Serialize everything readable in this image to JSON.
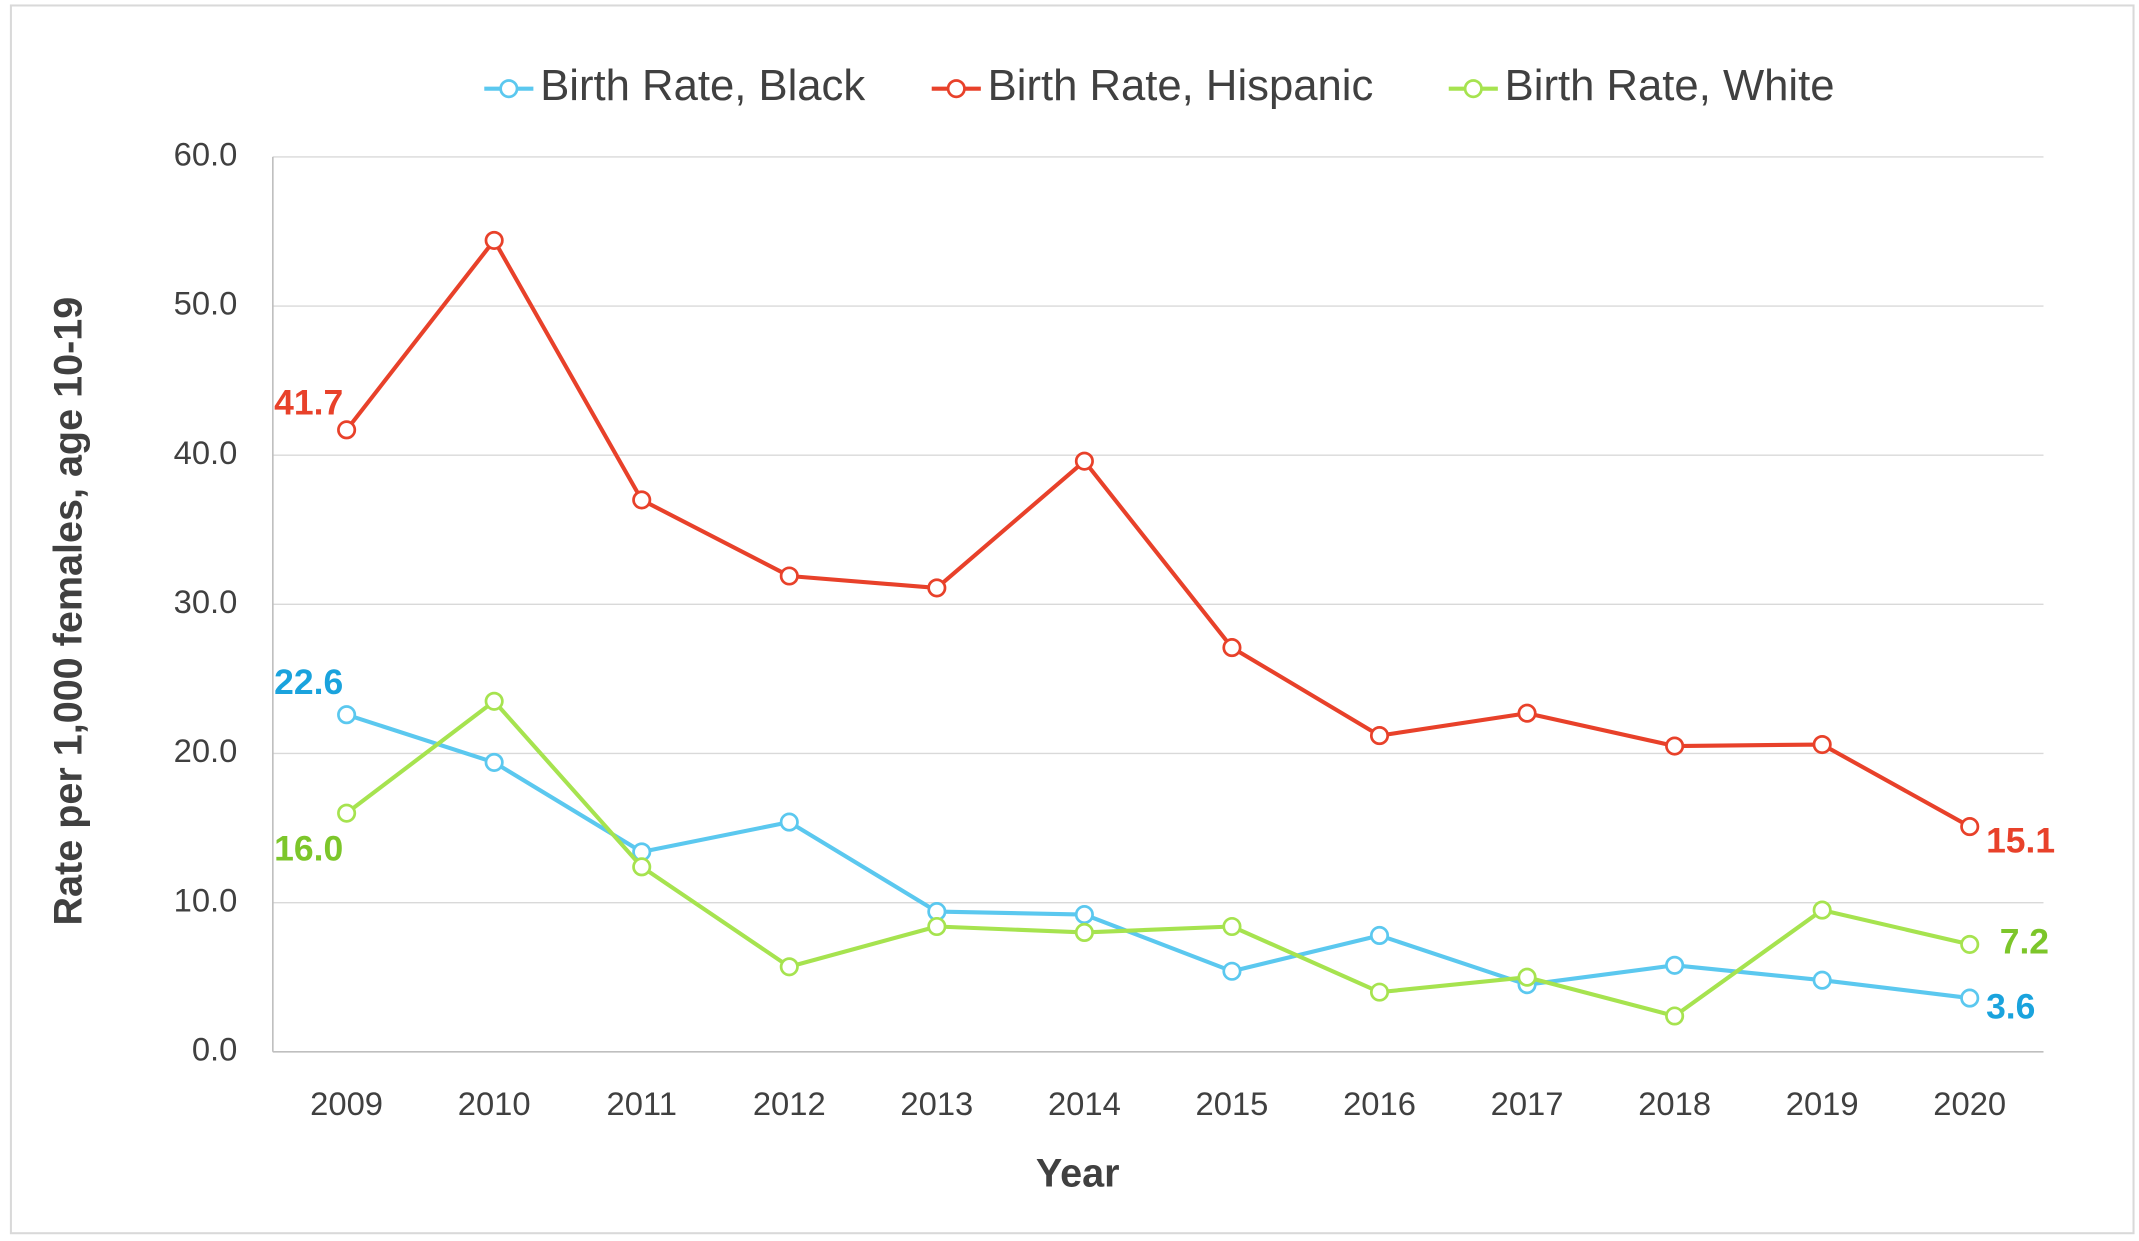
{
  "chart_data": {
    "type": "line",
    "x_label": "Year",
    "y_label": "Rate per 1,000 females, age 10-19",
    "categories": [
      "2009",
      "2010",
      "2011",
      "2012",
      "2013",
      "2014",
      "2015",
      "2016",
      "2017",
      "2018",
      "2019",
      "2020"
    ],
    "series": [
      {
        "name": "Birth Rate, Black",
        "color": "#5bc8ef",
        "values": [
          22.6,
          19.4,
          13.4,
          15.4,
          9.4,
          9.2,
          5.4,
          7.8,
          4.5,
          5.8,
          4.8,
          3.6
        ],
        "value_labels": [
          "22.6",
          null,
          null,
          null,
          null,
          null,
          null,
          null,
          null,
          null,
          null,
          "3.6"
        ],
        "label_color": "#1aa3dd"
      },
      {
        "name": "Birth Rate, Hispanic",
        "color": "#e8412a",
        "values": [
          41.7,
          54.4,
          37.0,
          31.9,
          31.1,
          39.6,
          27.1,
          21.2,
          22.7,
          20.5,
          20.6,
          15.1
        ],
        "value_labels": [
          "41.7",
          null,
          null,
          null,
          null,
          null,
          null,
          null,
          null,
          null,
          null,
          "15.1"
        ],
        "label_color": "#e8412a"
      },
      {
        "name": "Birth Rate, White",
        "color": "#a6e34f",
        "values": [
          16.0,
          23.5,
          12.4,
          5.7,
          8.4,
          8.0,
          8.4,
          4.0,
          5.0,
          2.4,
          9.5,
          7.2
        ],
        "value_labels": [
          "16.0",
          null,
          null,
          null,
          null,
          null,
          null,
          null,
          null,
          null,
          null,
          "7.2"
        ],
        "label_color": "#7cc62a"
      }
    ],
    "ylim": [
      0,
      60
    ],
    "yticks": [
      {
        "value": 0,
        "label": "0.0"
      },
      {
        "value": 10,
        "label": "10.0"
      },
      {
        "value": 20,
        "label": "20.0"
      },
      {
        "value": 30,
        "label": "30.0"
      },
      {
        "value": 40,
        "label": "40.0"
      },
      {
        "value": 50,
        "label": "50.0"
      },
      {
        "value": 60,
        "label": "60.0"
      }
    ],
    "grid": true,
    "legend": "top"
  }
}
